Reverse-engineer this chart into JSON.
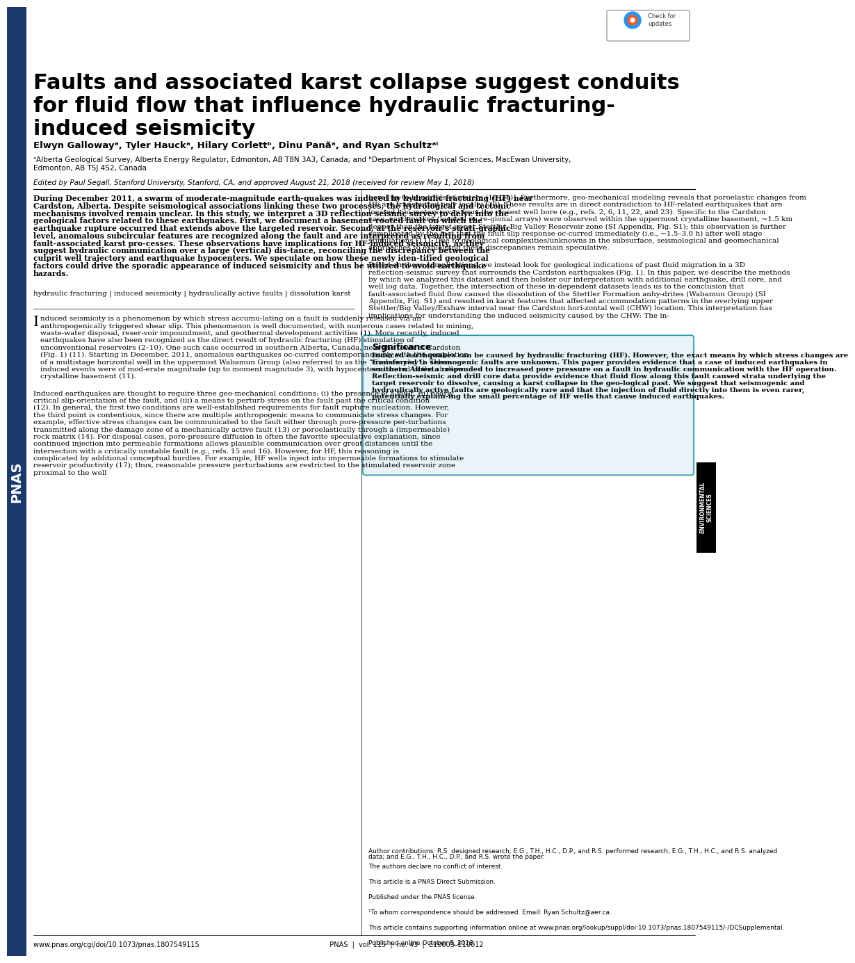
{
  "title_line1": "Faults and associated karst collapse suggest conduits",
  "title_line2": "for fluid flow that influence hydraulic fracturing-",
  "title_line3": "induced seismicity",
  "authors": "Elwyn Gallowayᵃ, Tyler Hauckᵃ, Hilary Corlettᵇ, Dinu Panăᵃ, and Ryan Schultzᵃⁱ",
  "affiliation1": "ᵃAlberta Geological Survey, Alberta Energy Regulator, Edmonton, AB T8N 3A3, Canada; and ᵇDepartment of Physical Sciences, MacEwan University,",
  "affiliation2": "Edmonton, AB T5J 4S2, Canada",
  "edited_by": "Edited by Paul Segall, Stanford University, Stanford, CA, and approved August 21, 2018 (received for review May 1, 2018)",
  "abstract_bold": "During December 2011, a swarm of moderate-magnitude earth-quakes was induced by hydraulic fracturing (HF) near Cardston, Alberta. Despite seismological associations linking these two processes, the hydrological and tectonic mechanisms involved remain unclear. In this study, we interpret a 3D reflection-seismic survey to delve into the geological factors related to these earthquakes. First, we document a basement-rooted fault on which the earthquake rupture occurred that extends above the targeted reservoir. Second, at the reservoir’s strati-graphic level, anomalous subcircular features are recognized along the fault and are interpreted as resulting from fault-associated karst pro-cesses. These observations have implications for HF-induced seismicity, as they suggest hydraulic communication over a large (vertical) dis-tance, reconciling the discrepancy between the culprit well trajectory and earthquake hypocenters. We speculate on how these newly iden-tified geological factors could drive the sporadic appearance of induced seismicity and thus be utilized to avoid earthquake hazards.",
  "keywords": "hydraulic fracturing | induced seismicity | hydraulically active faults | dissolution karst",
  "right_col_p1": "bore [up to hundreds of meters (18–21)]. Furthermore, geo-mechanical modeling reveals that poroelastic changes from HF are transmitted only locally (20). These results are in direct contradiction to HF-related earthquakes that are located kilo-meters away from the closest well bore (e.g., refs. 2, 6, 11, 22, and 23). Specific to the Cardston case, earthquakes (located on re-gional arrays) were observed within the uppermost crystalline basement, ~1.5 km deeper than the target upper Stettler–Big Valley Reservoir zone (",
  "right_col_p1_link": "SI Appendix, Fig. S1",
  "right_col_p1_cont": "); this observation is further complicated by the fact that the fault slip response oc-curred immediately (i.e., ~1.5–3.0 h) after well stage stimulations (11). Due to geological complexities/unknowns in the subsurface, seismological and geomechanical approaches to explaining these discrepancies remain speculative.",
  "right_col_p2": "Based on these complications, we instead look for geological indications of past fluid migration in a 3D reflection-seismic survey that surrounds the Cardston earthquakes (Fig. 1). In this paper, we describe the methods by which we analyzed this dataset and then bolster our interpretation with additional earthquake, drill core, and well log data. Together, the intersection of these in-dependent datasets leads us to the conclusion that fault-associated fluid flow caused the dissolution of the Stettler Formation anhy-drites (Wabamun Group) (",
  "right_col_p2_link": "SI Appendix, Fig. S1",
  "right_col_p2_cont": ") and resulted in karst features that affected accommodation patterns in the overlying upper Stettler/Big Valley/Exshaw interval near the Cardston hori-zontal well (CHW) location. This interpretation has implications for understanding the induced seismicity caused by the CHW: The in-",
  "significance_title": "Significance",
  "significance_text": "Induced earthquakes can be caused by hydraulic fracturing (HF). However, the exact means by which stress changes are transferred to seismogenic faults are unknown. This paper provides evidence that a case of induced earthquakes in southern Alberta responded to increased pore pressure on a fault in hydraulic communication with the HF operation. Reflection-seismic and drill core data provide evidence that fluid flow along this fault caused strata underlying the target reservoir to dissolve, causing a karst collapse in the geo-logical past. We suggest that seismogenic and hydraulically active faults are geologically rare and that the injection of fluid directly into them is even rarer, potentially explain-ing the small percentage of HF wells that cause induced earthquakes.",
  "left_body_p1": "Induced seismicity is a phenomenon by which stress accumu-lating on a fault is suddenly released via an anthropogenically triggered shear slip. This phenomenon is well documented, with numerous cases related to mining, waste-water disposal, reser-voir impoundment, and geothermal development activities (1). More recently, induced earthquakes have also been recognized as the direct result of hydraulic fracturing (HF) stimulation of unconventional reservoirs (2–10). One such case occurred in southern Alberta, Canada, near the town of Cardston (Fig. 1) (11). Starting in December, 2011, anomalous earthquakes oc-curred contemporaneously with the completion of a multistage horizontal well in the uppermost Wabamun Group (also referred to as the “Exshaw play”). These induced events were of mod-erate magnitude (up to moment magnitude 3), with hypocenters located in the shallow crystalline basement (11).",
  "left_body_p2": "Induced earthquakes are thought to require three geo-mechanical conditions: (i) the presence of a fault, (ii) nearly critical slip-orientation of the fault, and (iii) a means to perturb stress on the fault past the critical condition (12). In general, the first two conditions are well-established requirements for fault rupture nucleation. However, the third point is contentious, since there are multiple anthropogenic means to communicate stress changes. For example, effective stress changes can be communicated to the fault either through pore-pressure per-turbations transmitted along the damage zone of a mechanically active fault (13) or poroelastically through a (impermeable) rock matrix (14). For disposal cases, pore-pressure diffusion is often the favorite speculative explanation, since continued injection into permeable formations allows plausible communication over great distances until the intersection with a critically unstable fault (e.g., refs. 15 and 16). However, for HF, this reasoning is complicated by additional conceptual hurdles. For example, HF wells inject into impermeable formations to stimulate reservoir productivity (17); thus, reasonable pressure perturbations are restricted to the stimulated reservoir zone proximal to the well",
  "footnotes": "Author contributions: R.S. designed research; E.G., T.H., H.C., D.P., and R.S. performed research; E.G., T.H., H.C., and R.S. analyzed data; and E.G., T.H., H.C., D.P., and R.S. wrote the paper.\n\nThe authors declare no conflict of interest.\n\nThis article is a PNAS Direct Submission.\n\nPublished under the PNAS license.\n\n¹To whom correspondence should be addressed. Email: Ryan.Schultz@aer.ca.\n\nThis article contains supporting information online at www.pnas.org/lookup/suppl/doi:10.1073/pnas.1807549115/-/DCSupplemental.\n\nPublished online October 8, 2018.",
  "footer": "www.pnas.org/cgi/doi/10.1073/pnas.1807549115                                                            PNAS  |  vol. 115  |  no. 43  |  E10003–E10012",
  "sidebar_text": "ENVIRONMENTAL\nSCIENCES",
  "pnas_sidebar": "PNAS",
  "sidebar_color": "#1a3a6b",
  "sidebar_accent_color": "#c8102e",
  "significance_bg": "#e8f4f8",
  "significance_border": "#2196a8"
}
